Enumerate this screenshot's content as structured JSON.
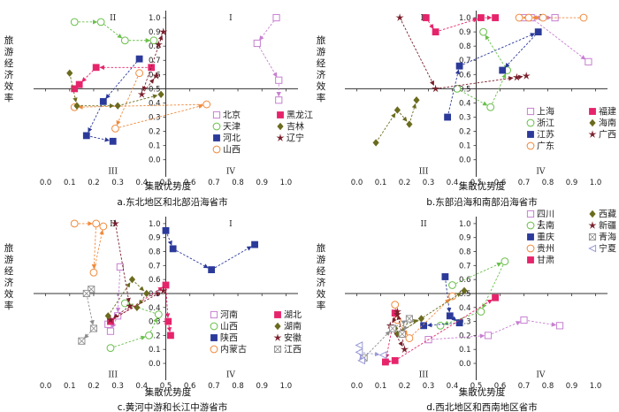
{
  "figure": {
    "axis_tick_labels_x": [
      "0.0",
      "0.1",
      "0.2",
      "0.3",
      "0.4",
      "0.5",
      "0.6",
      "0.7",
      "0.8",
      "0.9",
      "1.0"
    ],
    "axis_tick_labels_y": [
      "0.0",
      "0.1",
      "0.2",
      "0.3",
      "0.4",
      "0.5",
      "0.6",
      "0.7",
      "0.8",
      "0.9",
      "1.0"
    ]
  },
  "colors": {
    "purple": "#c77fd1",
    "green": "#6abf4b",
    "navy": "#2b3a9a",
    "orange": "#f08a3c",
    "magenta": "#e6246b",
    "olive": "#6b6b1f",
    "darkred": "#7a1f2b",
    "gray": "#8c8c8c",
    "lavender": "#9a9ad6",
    "axis": "#333333"
  },
  "chart_data": [
    {
      "type": "scatter",
      "id": "a",
      "title": "a.东北地区和北部沿海省市",
      "xlabel": "集散优势度",
      "ylabel": "旅游经济效率",
      "xlim": [
        -0.05,
        1.05
      ],
      "ylim": [
        -0.12,
        1.05
      ],
      "quadrants": [
        "I",
        "II",
        "III",
        "IV"
      ],
      "legend_cols": 2,
      "series": [
        {
          "name": "北京",
          "marker": "open-square",
          "color": "purple",
          "points": [
            [
              0.96,
              1.0
            ],
            [
              0.88,
              0.82
            ],
            [
              0.97,
              0.56
            ],
            [
              0.97,
              0.42
            ]
          ]
        },
        {
          "name": "天津",
          "marker": "open-circle",
          "color": "green",
          "points": [
            [
              0.12,
              0.97
            ],
            [
              0.23,
              0.97
            ],
            [
              0.33,
              0.84
            ],
            [
              0.45,
              0.84
            ]
          ]
        },
        {
          "name": "河北",
          "marker": "filled-square",
          "color": "navy",
          "points": [
            [
              0.39,
              0.71
            ],
            [
              0.24,
              0.41
            ],
            [
              0.17,
              0.17
            ],
            [
              0.28,
              0.13
            ]
          ]
        },
        {
          "name": "山西",
          "marker": "open-circle",
          "color": "orange",
          "points": [
            [
              0.39,
              0.61
            ],
            [
              0.29,
              0.22
            ],
            [
              0.67,
              0.39
            ],
            [
              0.12,
              0.37
            ]
          ]
        },
        {
          "name": "黑龙江",
          "marker": "filled-square",
          "color": "magenta",
          "points": [
            [
              0.44,
              0.65
            ],
            [
              0.21,
              0.65
            ],
            [
              0.14,
              0.53
            ],
            [
              0.12,
              0.5
            ]
          ]
        },
        {
          "name": "吉林",
          "marker": "filled-diamond",
          "color": "olive",
          "points": [
            [
              0.1,
              0.61
            ],
            [
              0.13,
              0.38
            ],
            [
              0.3,
              0.38
            ],
            [
              0.48,
              0.46
            ]
          ]
        },
        {
          "name": "辽宁",
          "marker": "filled-star",
          "color": "darkred",
          "points": [
            [
              0.47,
              0.81
            ],
            [
              0.49,
              0.9
            ],
            [
              0.4,
              0.46
            ],
            [
              0.46,
              0.59
            ]
          ]
        }
      ]
    },
    {
      "type": "scatter",
      "id": "b",
      "title": "b.东部沿海和南部沿海省市",
      "xlabel": "集散优势度",
      "ylabel": "旅游经济效率",
      "xlim": [
        -0.05,
        1.05
      ],
      "ylim": [
        -0.12,
        1.05
      ],
      "quadrants": [
        "I",
        "II",
        "III",
        "IV"
      ],
      "legend_cols": 2,
      "series": [
        {
          "name": "上海",
          "marker": "open-square",
          "color": "purple",
          "points": [
            [
              0.7,
              1.0
            ],
            [
              0.83,
              1.0
            ],
            [
              0.73,
              1.0
            ],
            [
              0.97,
              0.69
            ]
          ]
        },
        {
          "name": "浙江",
          "marker": "open-circle",
          "color": "green",
          "points": [
            [
              0.42,
              0.5
            ],
            [
              0.56,
              0.37
            ],
            [
              0.63,
              0.63
            ],
            [
              0.53,
              0.9
            ]
          ]
        },
        {
          "name": "江苏",
          "marker": "filled-square",
          "color": "navy",
          "points": [
            [
              0.38,
              0.3
            ],
            [
              0.43,
              0.66
            ],
            [
              0.76,
              0.9
            ],
            [
              0.61,
              0.63
            ]
          ]
        },
        {
          "name": "广东",
          "marker": "open-circle",
          "color": "orange",
          "points": [
            [
              0.95,
              1.0
            ],
            [
              0.72,
              1.0
            ],
            [
              0.78,
              1.0
            ],
            [
              0.68,
              1.0
            ]
          ]
        },
        {
          "name": "福建",
          "marker": "filled-square",
          "color": "magenta",
          "points": [
            [
              0.29,
              1.0
            ],
            [
              0.33,
              0.9
            ],
            [
              0.52,
              1.0
            ],
            [
              0.58,
              1.0
            ]
          ]
        },
        {
          "name": "海南",
          "marker": "filled-diamond",
          "color": "olive",
          "points": [
            [
              0.08,
              0.12
            ],
            [
              0.17,
              0.35
            ],
            [
              0.22,
              0.25
            ],
            [
              0.25,
              0.42
            ]
          ]
        },
        {
          "name": "广西",
          "marker": "filled-star",
          "color": "darkred",
          "points": [
            [
              0.18,
              1.0
            ],
            [
              0.33,
              0.5
            ],
            [
              0.67,
              0.58
            ],
            [
              0.71,
              0.59
            ]
          ]
        }
      ]
    },
    {
      "type": "scatter",
      "id": "c",
      "title": "c.黄河中游和长江中游省市",
      "xlabel": "集散优势度",
      "ylabel": "旅游经济效率",
      "xlim": [
        -0.05,
        1.05
      ],
      "ylim": [
        -0.12,
        1.05
      ],
      "quadrants": [
        "I",
        "II",
        "III",
        "IV"
      ],
      "legend_cols": 2,
      "series": [
        {
          "name": "河南",
          "marker": "open-square",
          "color": "purple",
          "points": [
            [
              0.31,
              0.69
            ],
            [
              0.3,
              0.34
            ],
            [
              0.27,
              0.23
            ],
            [
              0.26,
              0.28
            ]
          ]
        },
        {
          "name": "山西",
          "marker": "open-circle",
          "color": "green",
          "points": [
            [
              0.27,
              0.11
            ],
            [
              0.43,
              0.2
            ],
            [
              0.47,
              0.35
            ],
            [
              0.33,
              0.43
            ]
          ]
        },
        {
          "name": "陕西",
          "marker": "filled-square",
          "color": "navy",
          "points": [
            [
              0.5,
              0.95
            ],
            [
              0.53,
              0.82
            ],
            [
              0.69,
              0.67
            ],
            [
              0.87,
              0.85
            ]
          ]
        },
        {
          "name": "内蒙古",
          "marker": "open-circle",
          "color": "orange",
          "points": [
            [
              0.12,
              1.0
            ],
            [
              0.21,
              1.0
            ],
            [
              0.2,
              0.65
            ],
            [
              0.24,
              0.98
            ]
          ]
        },
        {
          "name": "湖北",
          "marker": "filled-square",
          "color": "magenta",
          "points": [
            [
              0.27,
              0.3
            ],
            [
              0.5,
              0.56
            ],
            [
              0.51,
              0.3
            ],
            [
              0.52,
              0.2
            ]
          ]
        },
        {
          "name": "湖南",
          "marker": "filled-diamond",
          "color": "olive",
          "points": [
            [
              0.26,
              0.34
            ],
            [
              0.36,
              0.6
            ],
            [
              0.42,
              0.5
            ],
            [
              0.38,
              0.4
            ]
          ]
        },
        {
          "name": "安徽",
          "marker": "filled-star",
          "color": "darkred",
          "points": [
            [
              0.29,
              1.0
            ],
            [
              0.35,
              0.41
            ],
            [
              0.27,
              0.31
            ],
            [
              0.49,
              0.52
            ]
          ]
        },
        {
          "name": "江西",
          "marker": "crossed-square",
          "color": "gray",
          "points": [
            [
              0.19,
              0.53
            ],
            [
              0.17,
              0.5
            ],
            [
              0.2,
              0.25
            ],
            [
              0.15,
              0.16
            ]
          ]
        }
      ]
    },
    {
      "type": "scatter",
      "id": "d",
      "title": "d.西北地区和西南地区省市",
      "xlabel": "集散优势度",
      "ylabel": "旅游经济效率",
      "xlim": [
        -0.05,
        1.05
      ],
      "ylim": [
        -0.12,
        1.05
      ],
      "quadrants": [
        "I",
        "II",
        "III",
        "IV"
      ],
      "legend_cols": 2,
      "series": [
        {
          "name": "四川",
          "marker": "open-square",
          "color": "purple",
          "points": [
            [
              0.3,
              0.17
            ],
            [
              0.55,
              0.2
            ],
            [
              0.7,
              0.31
            ],
            [
              0.85,
              0.27
            ]
          ]
        },
        {
          "name": "云南",
          "marker": "open-circle",
          "color": "green",
          "points": [
            [
              0.4,
              0.56
            ],
            [
              0.62,
              0.73
            ],
            [
              0.52,
              0.37
            ],
            [
              0.35,
              0.27
            ]
          ]
        },
        {
          "name": "重庆",
          "marker": "filled-square",
          "color": "navy",
          "points": [
            [
              0.37,
              0.62
            ],
            [
              0.39,
              0.34
            ],
            [
              0.43,
              0.29
            ],
            [
              0.28,
              0.27
            ]
          ]
        },
        {
          "name": "贵州",
          "marker": "open-circle",
          "color": "orange",
          "points": [
            [
              0.16,
              0.42
            ],
            [
              0.17,
              0.31
            ],
            [
              0.22,
              0.18
            ],
            [
              0.4,
              0.48
            ]
          ]
        },
        {
          "name": "甘肃",
          "marker": "filled-square",
          "color": "magenta",
          "points": [
            [
              0.16,
              0.36
            ],
            [
              0.12,
              0.01
            ],
            [
              0.16,
              0.02
            ],
            [
              0.58,
              0.47
            ]
          ]
        },
        {
          "name": "西藏",
          "marker": "filled-diamond",
          "color": "olive",
          "points": [
            [
              0.16,
              0.25
            ],
            [
              0.27,
              0.32
            ],
            [
              0.17,
              0.21
            ],
            [
              0.45,
              0.52
            ]
          ]
        },
        {
          "name": "新疆",
          "marker": "filled-star",
          "color": "darkred",
          "points": [
            [
              0.17,
              0.35
            ],
            [
              0.14,
              0.27
            ],
            [
              0.2,
              0.1
            ],
            [
              0.17,
              0.37
            ]
          ]
        },
        {
          "name": "青海",
          "marker": "crossed-square",
          "color": "gray",
          "points": [
            [
              0.03,
              0.04
            ],
            [
              0.15,
              0.25
            ],
            [
              0.22,
              0.32
            ],
            [
              0.19,
              0.21
            ]
          ]
        },
        {
          "name": "宁夏",
          "marker": "left-triangle",
          "color": "lavender",
          "points": [
            [
              0.01,
              0.13
            ],
            [
              0.02,
              0.02
            ],
            [
              0.01,
              0.08
            ],
            [
              0.11,
              0.06
            ]
          ]
        }
      ]
    }
  ]
}
